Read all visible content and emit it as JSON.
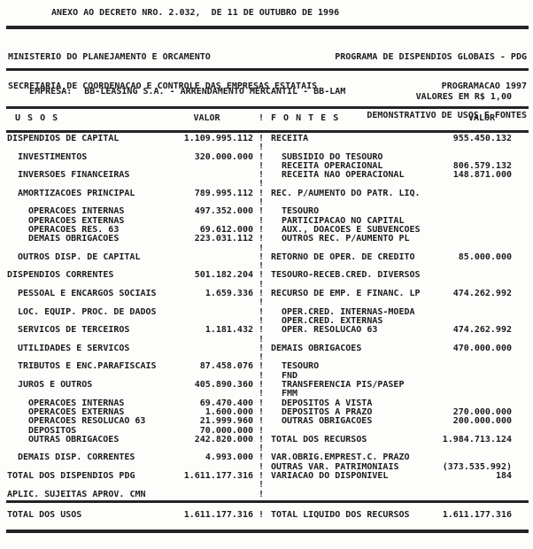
{
  "document": {
    "title": "ANEXO AO DECRETO NRO. 2.032,  DE 11 DE OUTUBRO DE 1996",
    "org_line1": "MINISTERIO DO PLANEJAMENTO E ORCAMENTO",
    "org_line2": "SECRETARIA DE COORDENACAO E CONTROLE DAS EMPRESAS ESTATAIS",
    "program_line1": "PROGRAMA DE DISPENDIOS GLOBAIS - PDG",
    "program_line2": "PROGRAMACAO 1997",
    "program_line3": "DEMONSTRATIVO DE USOS E FONTES",
    "company_label": "EMPRESA:",
    "company_name": "BB-LEASING S.A. - ARRENDAMENTO MERCANTIL - BB-LAM",
    "currency_note": "VALORES EM R$ 1,00"
  },
  "colors": {
    "ink": "#1b1b1b",
    "paper": "#fdfdfb"
  },
  "table": {
    "col_usos": "U S O S",
    "col_valor_left": "VALOR",
    "col_fontes": "F O N T E S",
    "col_valor_right": "VALOR",
    "divider_glyph": "!",
    "lines": [
      {
        "ul": "DISPENDIOS DE CAPITAL",
        "ui": 0,
        "uv": "1.109.995.112",
        "fl": "RECEITA",
        "fi": 0,
        "fv": "955.450.132"
      },
      {},
      {
        "ul": "INVESTIMENTOS",
        "ui": 1,
        "uv": "320.000.000",
        "fl": "SUBSIDIO DO TESOURO",
        "fi": 1
      },
      {
        "fl": "RECEITA OPERACIONAL",
        "fi": 1,
        "fv": "806.579.132"
      },
      {
        "ul": "INVERSOES FINANCEIRAS",
        "ui": 1,
        "fl": "RECEITA NAO OPERACIONAL",
        "fi": 1,
        "fv": "148.871.000"
      },
      {},
      {
        "ul": "AMORTIZACOES PRINCIPAL",
        "ui": 1,
        "uv": "789.995.112",
        "fl": "REC. P/AUMENTO DO PATR. LIQ.",
        "fi": 0
      },
      {},
      {
        "ul": "OPERACOES INTERNAS",
        "ui": 2,
        "uv": "497.352.000",
        "fl": "TESOURO",
        "fi": 1
      },
      {
        "ul": "OPERACOES EXTERNAS",
        "ui": 2,
        "fl": "PARTICIPACAO NO CAPITAL",
        "fi": 1
      },
      {
        "ul": "OPERACOES RES. 63",
        "ui": 2,
        "uv": "69.612.000",
        "fl": "AUX., DOACOES E SUBVENCOES",
        "fi": 1
      },
      {
        "ul": "DEMAIS OBRIGACOES",
        "ui": 2,
        "uv": "223.031.112",
        "fl": "OUTROS REC. P/AUMENTO PL",
        "fi": 1
      },
      {},
      {
        "ul": "OUTROS DISP. DE CAPITAL",
        "ui": 1,
        "fl": "RETORNO DE OPER. DE CREDITO",
        "fi": 0,
        "fv": "85.000.000"
      },
      {},
      {
        "ul": "DISPENDIOS CORRENTES",
        "ui": 0,
        "uv": "501.182.204",
        "fl": "TESOURO-RECEB.CRED. DIVERSOS",
        "fi": 0
      },
      {},
      {
        "ul": "PESSOAL E ENCARGOS SOCIAIS",
        "ui": 1,
        "uv": "1.659.336",
        "fl": "RECURSO DE EMP. E FINANC. LP",
        "fi": 0,
        "fv": "474.262.992"
      },
      {},
      {
        "ul": "LOC. EQUIP. PROC. DE DADOS",
        "ui": 1,
        "fl": "OPER.CRED. INTERNAS-MOEDA",
        "fi": 1
      },
      {
        "fl": "OPER.CRED. EXTERNAS",
        "fi": 1
      },
      {
        "ul": "SERVICOS DE TERCEIROS",
        "ui": 1,
        "uv": "1.181.432",
        "fl": "OPER. RESOLUCAO 63",
        "fi": 1,
        "fv": "474.262.992"
      },
      {},
      {
        "ul": "UTILIDADES E SERVICOS",
        "ui": 1,
        "fl": "DEMAIS OBRIGACOES",
        "fi": 0,
        "fv": "470.000.000"
      },
      {},
      {
        "ul": "TRIBUTOS E ENC.PARAFISCAIS",
        "ui": 1,
        "uv": "87.458.076",
        "fl": "TESOURO",
        "fi": 1
      },
      {
        "fl": "FND",
        "fi": 1
      },
      {
        "ul": "JUROS E OUTROS",
        "ui": 1,
        "uv": "405.890.360",
        "fl": "TRANSFERENCIA PIS/PASEP",
        "fi": 1
      },
      {
        "fl": "FMM",
        "fi": 1
      },
      {
        "ul": "OPERACOES INTERNAS",
        "ui": 2,
        "uv": "69.470.400",
        "fl": "DEPOSITOS A VISTA",
        "fi": 1
      },
      {
        "ul": "OPERACOES EXTERNAS",
        "ui": 2,
        "uv": "1.600.000",
        "fl": "DEPOSITOS A PRAZO",
        "fi": 1,
        "fv": "270.000.000"
      },
      {
        "ul": "OPERACOES RESOLUCAO 63",
        "ui": 2,
        "uv": "21.999.960",
        "fl": "OUTRAS OBRIGACOES",
        "fi": 1,
        "fv": "200.000.000"
      },
      {
        "ul": "DEPOSITOS",
        "ui": 2,
        "uv": "70.000.000"
      },
      {
        "ul": "OUTRAS OBRIGACOES",
        "ui": 2,
        "uv": "242.820.000",
        "fl": "TOTAL DOS RECURSOS",
        "fi": 0,
        "fv": "1.984.713.124"
      },
      {},
      {
        "ul": "DEMAIS DISP. CORRENTES",
        "ui": 1,
        "uv": "4.993.000",
        "fl": "VAR.OBRIG.EMPREST.C. PRAZO",
        "fi": 0
      },
      {
        "fl": "OUTRAS VAR. PATRIMONIAIS",
        "fi": 0,
        "fv": "(373.535.992)"
      },
      {
        "ul": "TOTAL DOS DISPENDIOS PDG",
        "ui": 0,
        "uv": "1.611.177.316",
        "fl": "VARIACAO DO DISPONIVEL",
        "fi": 0,
        "fv": "184"
      },
      {},
      {
        "ul": "APLIC. SUJEITAS APROV. CMN",
        "ui": 0
      }
    ],
    "total_row": {
      "usos_label": "TOTAL DOS USOS",
      "usos_value": "1.611.177.316",
      "fontes_label": "TOTAL LIQUIDO DOS RECURSOS",
      "fontes_value": "1.611.177.316"
    }
  }
}
